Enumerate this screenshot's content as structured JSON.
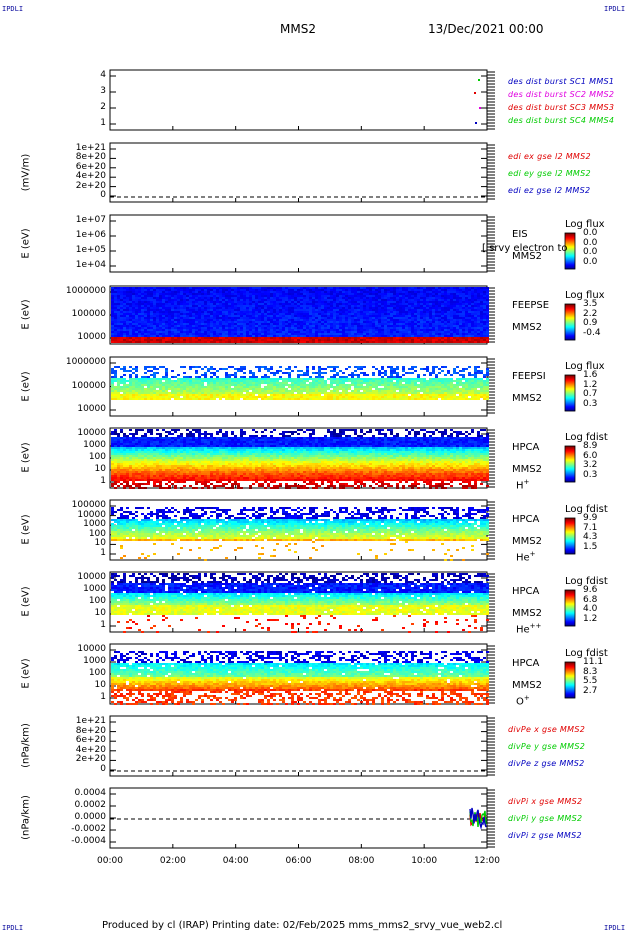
{
  "corners": {
    "tl": "IPDLI",
    "tr": "IPDLI",
    "bl": "IPDLI",
    "br": "IPDLI"
  },
  "header": {
    "spacecraft": "MMS2",
    "datetime": "13/Dec/2021 00:00"
  },
  "footer": "Produced by cl (IRAP)   Printing date: 02/Feb/2025   mms_mms2_srvy_vue_web2.cl",
  "colors": {
    "blue": "#0000c0",
    "magenta": "#e000e0",
    "red": "#e00000",
    "green": "#00cc00"
  },
  "chart_data": [
    {
      "type": "scatter",
      "panel": "dist-burst",
      "yticks": [
        "4",
        "3",
        "2",
        "1"
      ],
      "legend": [
        {
          "text": "des dist burst SC1 MMS1",
          "color": "#0000c0"
        },
        {
          "text": "des dist burst SC2 MMS2",
          "color": "#e000e0"
        },
        {
          "text": "des dist burst SC3 MMS3",
          "color": "#e00000"
        },
        {
          "text": "des dist burst SC4 MMS4",
          "color": "#00cc00"
        }
      ]
    },
    {
      "type": "line",
      "panel": "edi",
      "ylabel": "(mV/m)",
      "yticks": [
        "1e+21",
        "8e+20",
        "6e+20",
        "4e+20",
        "2e+20",
        "0"
      ],
      "legend": [
        {
          "text": "edi ex gse l2 MMS2",
          "color": "#e00000"
        },
        {
          "text": "edi ey gse l2 MMS2",
          "color": "#00cc00"
        },
        {
          "text": "edi ez gse l2 MMS2",
          "color": "#0000c0"
        }
      ]
    },
    {
      "type": "heatmap",
      "panel": "eis",
      "ylabel": "E (eV)",
      "yticks": [
        "1e+07",
        "1e+06",
        "1e+05",
        "1e+04"
      ],
      "side": [
        "EIS",
        "MMS2"
      ],
      "overlay": "[ srvy electron to",
      "cb_title": "Log flux",
      "cb_values": [
        "0.0",
        "0.0",
        "0.0",
        "0.0"
      ]
    },
    {
      "type": "heatmap",
      "panel": "feepse",
      "ylabel": "E (eV)",
      "yticks": [
        "1000000",
        "100000",
        "10000"
      ],
      "side": [
        "FEEPSE",
        "MMS2"
      ],
      "cb_title": "Log flux",
      "cb_values": [
        "3.5",
        "2.2",
        "0.9",
        "-0.4"
      ]
    },
    {
      "type": "heatmap",
      "panel": "feepsi",
      "ylabel": "E (eV)",
      "yticks": [
        "1000000",
        "100000",
        "10000"
      ],
      "side": [
        "FEEPSI",
        "MMS2"
      ],
      "cb_title": "Log flux",
      "cb_values": [
        "1.6",
        "1.2",
        "0.7",
        "0.3"
      ]
    },
    {
      "type": "heatmap",
      "panel": "hpca-h",
      "ylabel": "E (eV)",
      "yticks": [
        "10000",
        "1000",
        "100",
        "10",
        "1"
      ],
      "side": [
        "HPCA",
        "MMS2",
        "H"
      ],
      "sup": "+",
      "cb_title": "Log fdist",
      "cb_values": [
        "8.9",
        "6.0",
        "3.2",
        "0.3"
      ]
    },
    {
      "type": "heatmap",
      "panel": "hpca-he",
      "ylabel": "E (eV)",
      "yticks": [
        "100000",
        "10000",
        "1000",
        "100",
        "10",
        "1"
      ],
      "side": [
        "HPCA",
        "MMS2",
        "He"
      ],
      "sup": "+",
      "cb_title": "Log fdist",
      "cb_values": [
        "9.9",
        "7.1",
        "4.3",
        "1.5"
      ]
    },
    {
      "type": "heatmap",
      "panel": "hpca-hepp",
      "ylabel": "E (eV)",
      "yticks": [
        "10000",
        "1000",
        "100",
        "10",
        "1"
      ],
      "side": [
        "HPCA",
        "MMS2",
        "He"
      ],
      "sup": "++",
      "cb_title": "Log fdist",
      "cb_values": [
        "9.6",
        "6.8",
        "4.0",
        "1.2"
      ]
    },
    {
      "type": "heatmap",
      "panel": "hpca-o",
      "ylabel": "E (eV)",
      "yticks": [
        "10000",
        "1000",
        "100",
        "10",
        "1"
      ],
      "side": [
        "HPCA",
        "MMS2",
        "O"
      ],
      "sup": "+",
      "cb_title": "Log fdist",
      "cb_values": [
        "11.1",
        "8.3",
        "5.5",
        "2.7"
      ]
    },
    {
      "type": "line",
      "panel": "divpe",
      "ylabel": "(nPa/km)",
      "yticks": [
        "1e+21",
        "8e+20",
        "6e+20",
        "4e+20",
        "2e+20",
        "0"
      ],
      "legend": [
        {
          "text": "divPe x gse MMS2",
          "color": "#e00000"
        },
        {
          "text": "divPe y gse MMS2",
          "color": "#00cc00"
        },
        {
          "text": "divPe z gse MMS2",
          "color": "#0000c0"
        }
      ]
    },
    {
      "type": "line",
      "panel": "divpi",
      "ylabel": "(nPa/km)",
      "yticks": [
        "0.0004",
        "0.0002",
        "0.0000",
        "-0.0002",
        "-0.0004"
      ],
      "legend": [
        {
          "text": "divPi x gse MMS2",
          "color": "#e00000"
        },
        {
          "text": "divPi y gse MMS2",
          "color": "#00cc00"
        },
        {
          "text": "divPi z gse MMS2",
          "color": "#0000c0"
        }
      ]
    }
  ],
  "xaxis": {
    "ticks": [
      "00:00",
      "02:00",
      "04:00",
      "06:00",
      "08:00",
      "10:00",
      "12:00"
    ]
  }
}
